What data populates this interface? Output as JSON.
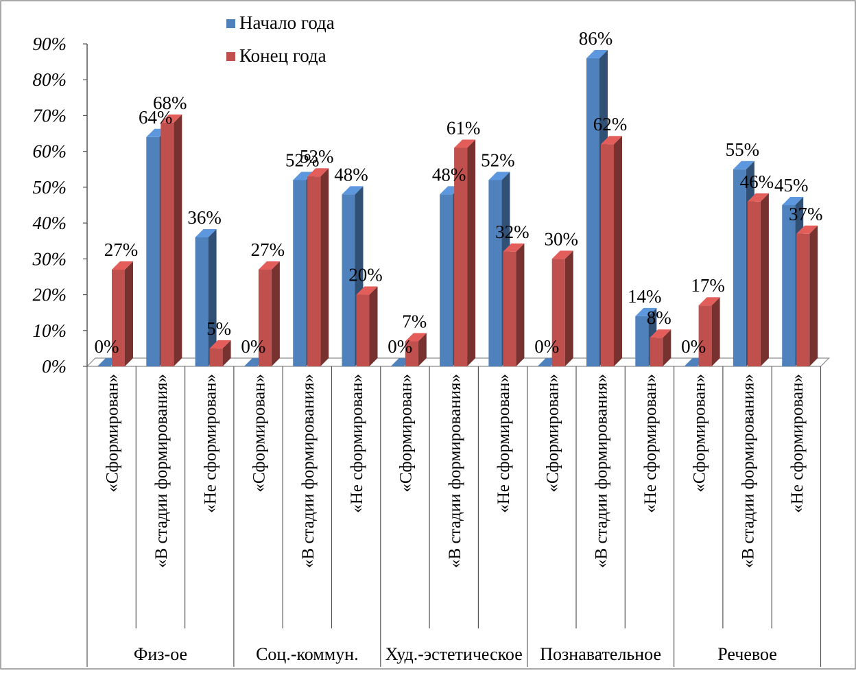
{
  "chart_data": {
    "type": "bar",
    "style": "3d-clustered-column",
    "y_unit": "%",
    "ylim": [
      0,
      90
    ],
    "ytick_step": 10,
    "yticks": [
      "0%",
      "10%",
      "20%",
      "30%",
      "40%",
      "50%",
      "60%",
      "70%",
      "80%",
      "90%"
    ],
    "grid": false,
    "legend_position": "top",
    "categories": [
      "«Сформирован»",
      "«В стадии формирования»",
      "«Не сформирован»",
      "«Сформирован»",
      "«В стадии формирования»",
      "«Не сформирован»",
      "«Сформирован»",
      "«В стадии формирования»",
      "«Не сформирован»",
      "«Сформирован»",
      "«В стадии формирования»",
      "«Не сформирован»",
      "«Сформирован»",
      "«В стадии формирования»",
      "«Не сформирован»"
    ],
    "groups": [
      {
        "label": "Физ-ое",
        "size": 3
      },
      {
        "label": "Соц.-коммун.",
        "size": 3
      },
      {
        "label": "Худ.-эстетическое",
        "size": 3
      },
      {
        "label": "Познавательное",
        "size": 3
      },
      {
        "label": "Речевое",
        "size": 3
      }
    ],
    "series": [
      {
        "name": "Начало года",
        "color": "#4f81bd",
        "values": [
          0,
          64,
          36,
          0,
          52,
          48,
          0,
          48,
          52,
          0,
          86,
          14,
          0,
          55,
          45
        ],
        "labels": [
          "0%",
          "64%",
          "36%",
          "0%",
          "52%",
          "48%",
          "0%",
          "48%",
          "52%",
          "0%",
          "86%",
          "14%",
          "0%",
          "55%",
          "45%"
        ]
      },
      {
        "name": "Конец года",
        "color": "#c0504d",
        "values": [
          27,
          68,
          5,
          27,
          53,
          20,
          7,
          61,
          32,
          30,
          62,
          8,
          17,
          46,
          37
        ],
        "labels": [
          "27%",
          "68%",
          "5%",
          "27%",
          "53%",
          "20%",
          "7%",
          "61%",
          "32%",
          "30%",
          "62%",
          "8%",
          "17%",
          "46%",
          "37%"
        ]
      }
    ]
  }
}
